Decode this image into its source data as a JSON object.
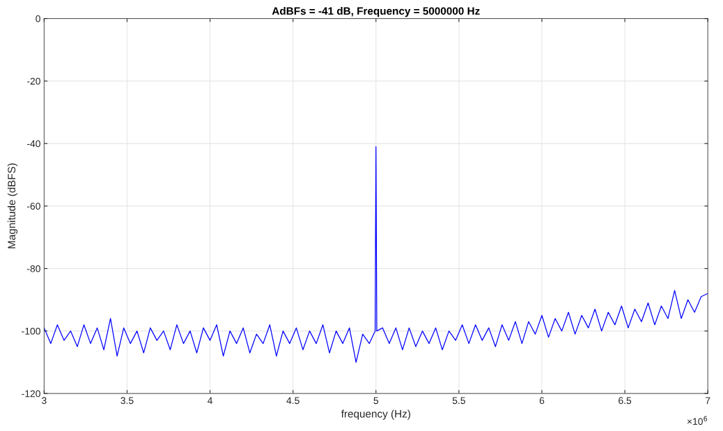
{
  "chart_data": {
    "type": "line",
    "title": "AdBFs = -41 dB, Frequency = 5000000 Hz",
    "xlabel": "frequency (Hz)",
    "ylabel": "Magnitude (dBFS)",
    "annotations": [
      "×10$^{6}$"
    ],
    "x": [
      3.0,
      3.04,
      3.08,
      3.12,
      3.16,
      3.2,
      3.24,
      3.28,
      3.32,
      3.36,
      3.4,
      3.44,
      3.48,
      3.52,
      3.56,
      3.6,
      3.64,
      3.68,
      3.72,
      3.76,
      3.8,
      3.84,
      3.88,
      3.92,
      3.96,
      4.0,
      4.04,
      4.08,
      4.12,
      4.16,
      4.2,
      4.24,
      4.28,
      4.32,
      4.36,
      4.4,
      4.44,
      4.48,
      4.52,
      4.56,
      4.6,
      4.64,
      4.68,
      4.72,
      4.76,
      4.8,
      4.84,
      4.88,
      4.92,
      4.96,
      4.995,
      5.0,
      5.005,
      5.04,
      5.08,
      5.12,
      5.16,
      5.2,
      5.24,
      5.28,
      5.32,
      5.36,
      5.4,
      5.44,
      5.48,
      5.52,
      5.56,
      5.6,
      5.64,
      5.68,
      5.72,
      5.76,
      5.8,
      5.84,
      5.88,
      5.92,
      5.96,
      6.0,
      6.04,
      6.08,
      6.12,
      6.16,
      6.2,
      6.24,
      6.28,
      6.32,
      6.36,
      6.4,
      6.44,
      6.48,
      6.52,
      6.56,
      6.6,
      6.64,
      6.68,
      6.72,
      6.76,
      6.8,
      6.84,
      6.88,
      6.92,
      6.96,
      7.0
    ],
    "series": [
      {
        "color": "#0000ff",
        "values": [
          -99,
          -104,
          -98,
          -103,
          -100,
          -105,
          -98,
          -104,
          -99,
          -106,
          -96,
          -108,
          -99,
          -104,
          -100,
          -107,
          -99,
          -103,
          -100,
          -106,
          -98,
          -104,
          -100,
          -107,
          -99,
          -103,
          -98,
          -108,
          -100,
          -104,
          -99,
          -107,
          -101,
          -104,
          -98,
          -108,
          -100,
          -104,
          -99,
          -106,
          -100,
          -104,
          -98,
          -107,
          -100,
          -104,
          -99,
          -110,
          -101,
          -104,
          -100,
          -41,
          -100,
          -99,
          -104,
          -99,
          -106,
          -99,
          -105,
          -100,
          -104,
          -99,
          -106,
          -100,
          -103,
          -98,
          -104,
          -98,
          -103,
          -99,
          -105,
          -98,
          -103,
          -97,
          -104,
          -97,
          -101,
          -95,
          -102,
          -96,
          -100,
          -94,
          -101,
          -95,
          -99,
          -93,
          -100,
          -94,
          -98,
          -92,
          -99,
          -93,
          -97,
          -91,
          -98,
          -92,
          -96,
          -87,
          -96,
          -90,
          -94,
          -89,
          -88
        ]
      }
    ],
    "xlim": [
      3,
      7
    ],
    "xticks": [
      3,
      3.5,
      4,
      4.5,
      5,
      5.5,
      6,
      6.5,
      7
    ],
    "ylim": [
      -120,
      0
    ],
    "yticks": [
      -120,
      -100,
      -80,
      -60,
      -40,
      -20,
      0
    ],
    "grid": true,
    "line_style": "solid",
    "marker": "none"
  }
}
